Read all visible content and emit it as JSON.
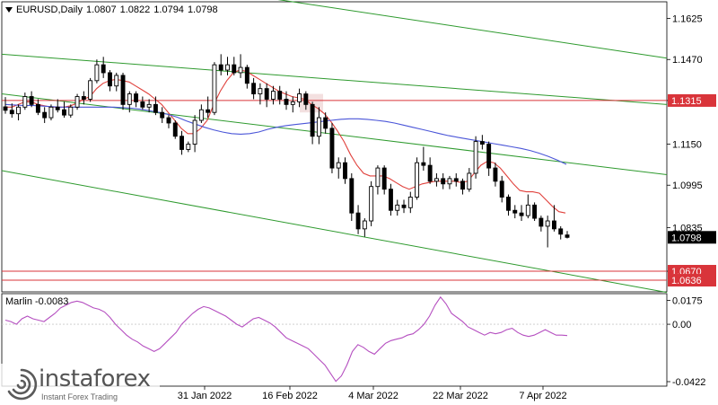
{
  "header": {
    "symbol": "EURUSD,Daily",
    "open": "1.0807",
    "high": "1.0822",
    "low": "1.0794",
    "close": "1.0798"
  },
  "indicator": {
    "name": "Marlin",
    "value": "-0.0083"
  },
  "watermark": {
    "brand": "instaforex",
    "tagline": "Instant Forex Trading"
  },
  "colors": {
    "background": "#ffffff",
    "candle": "#000000",
    "ma_fast": "#e0413c",
    "ma_slow": "#4a55d8",
    "channel": "#2e9a2e",
    "level": "#d9343a",
    "oscillator": "#b54fc0",
    "price_tag_bg": "#000000"
  },
  "chart_data": [
    {
      "type": "candlestick",
      "symbol": "EURUSD",
      "timeframe": "Daily",
      "ylim": [
        1.0592,
        1.1688
      ],
      "y_ticks": [
        "1.1625",
        "1.1470",
        "1.1315",
        "1.1150",
        "1.0995",
        "1.0835",
        "1.0670"
      ],
      "x_ticks": [
        "31 Jan 2022",
        "16 Feb 2022",
        "4 Mar 2022",
        "22 Mar 2022",
        "7 Apr 2022"
      ],
      "price_labels": {
        "current": "1.0798",
        "resistance": "1.1315",
        "support_1": "1.0670",
        "support_2": "1.0636"
      },
      "horizontal_levels": [
        1.1315,
        1.067,
        1.0636
      ],
      "candles": [
        [
          1.1291,
          1.1328,
          1.1265,
          1.1278
        ],
        [
          1.1278,
          1.1304,
          1.125,
          1.1265
        ],
        [
          1.1265,
          1.13,
          1.124,
          1.129
        ],
        [
          1.129,
          1.1345,
          1.128,
          1.133
        ],
        [
          1.133,
          1.135,
          1.129,
          1.13
        ],
        [
          1.13,
          1.132,
          1.126,
          1.127
        ],
        [
          1.127,
          1.129,
          1.123,
          1.125
        ],
        [
          1.125,
          1.13,
          1.124,
          1.129
        ],
        [
          1.129,
          1.132,
          1.127,
          1.128
        ],
        [
          1.128,
          1.131,
          1.125,
          1.126
        ],
        [
          1.126,
          1.13,
          1.125,
          1.129
        ],
        [
          1.129,
          1.134,
          1.128,
          1.133
        ],
        [
          1.133,
          1.135,
          1.13,
          1.132
        ],
        [
          1.132,
          1.14,
          1.131,
          1.139
        ],
        [
          1.139,
          1.147,
          1.138,
          1.145
        ],
        [
          1.145,
          1.148,
          1.14,
          1.142
        ],
        [
          1.142,
          1.143,
          1.135,
          1.137
        ],
        [
          1.137,
          1.142,
          1.135,
          1.141
        ],
        [
          1.141,
          1.142,
          1.128,
          1.13
        ],
        [
          1.13,
          1.135,
          1.127,
          1.134
        ],
        [
          1.134,
          1.135,
          1.129,
          1.131
        ],
        [
          1.131,
          1.133,
          1.128,
          1.129
        ],
        [
          1.129,
          1.132,
          1.127,
          1.13
        ],
        [
          1.13,
          1.133,
          1.126,
          1.127
        ],
        [
          1.127,
          1.129,
          1.123,
          1.125
        ],
        [
          1.125,
          1.126,
          1.121,
          1.123
        ],
        [
          1.123,
          1.124,
          1.117,
          1.118
        ],
        [
          1.118,
          1.12,
          1.111,
          1.113
        ],
        [
          1.113,
          1.116,
          1.112,
          1.115
        ],
        [
          1.115,
          1.126,
          1.112,
          1.124
        ],
        [
          1.124,
          1.13,
          1.123,
          1.128
        ],
        [
          1.128,
          1.133,
          1.125,
          1.127
        ],
        [
          1.127,
          1.146,
          1.126,
          1.145
        ],
        [
          1.145,
          1.149,
          1.141,
          1.143
        ],
        [
          1.143,
          1.148,
          1.141,
          1.145
        ],
        [
          1.145,
          1.148,
          1.141,
          1.142
        ],
        [
          1.142,
          1.149,
          1.14,
          1.144
        ],
        [
          1.144,
          1.145,
          1.136,
          1.138
        ],
        [
          1.138,
          1.14,
          1.132,
          1.134
        ],
        [
          1.134,
          1.138,
          1.13,
          1.136
        ],
        [
          1.136,
          1.138,
          1.129,
          1.132
        ],
        [
          1.132,
          1.137,
          1.13,
          1.135
        ],
        [
          1.135,
          1.137,
          1.13,
          1.132
        ],
        [
          1.132,
          1.135,
          1.128,
          1.13
        ],
        [
          1.13,
          1.133,
          1.127,
          1.131
        ],
        [
          1.131,
          1.136,
          1.129,
          1.134
        ],
        [
          1.134,
          1.135,
          1.128,
          1.13
        ],
        [
          1.13,
          1.131,
          1.115,
          1.118
        ],
        [
          1.118,
          1.129,
          1.115,
          1.125
        ],
        [
          1.125,
          1.127,
          1.119,
          1.121
        ],
        [
          1.121,
          1.123,
          1.104,
          1.106
        ],
        [
          1.106,
          1.11,
          1.102,
          1.108
        ],
        [
          1.108,
          1.11,
          1.1,
          1.102
        ],
        [
          1.102,
          1.104,
          1.086,
          1.089
        ],
        [
          1.089,
          1.092,
          1.081,
          1.083
        ],
        [
          1.083,
          1.087,
          1.08,
          1.086
        ],
        [
          1.086,
          1.101,
          1.084,
          1.099
        ],
        [
          1.099,
          1.107,
          1.096,
          1.106
        ],
        [
          1.106,
          1.107,
          1.096,
          1.098
        ],
        [
          1.098,
          1.1,
          1.088,
          1.09
        ],
        [
          1.09,
          1.094,
          1.088,
          1.092
        ],
        [
          1.092,
          1.094,
          1.089,
          1.091
        ],
        [
          1.091,
          1.097,
          1.089,
          1.095
        ],
        [
          1.095,
          1.11,
          1.094,
          1.108
        ],
        [
          1.108,
          1.114,
          1.105,
          1.107
        ],
        [
          1.107,
          1.11,
          1.1,
          1.101
        ],
        [
          1.101,
          1.104,
          1.099,
          1.102
        ],
        [
          1.102,
          1.104,
          1.098,
          1.1
        ],
        [
          1.1,
          1.103,
          1.098,
          1.102
        ],
        [
          1.102,
          1.104,
          1.099,
          1.101
        ],
        [
          1.101,
          1.102,
          1.096,
          1.098
        ],
        [
          1.098,
          1.106,
          1.097,
          1.104
        ],
        [
          1.104,
          1.118,
          1.102,
          1.116
        ],
        [
          1.116,
          1.1185,
          1.113,
          1.115
        ],
        [
          1.115,
          1.116,
          1.103,
          1.106
        ],
        [
          1.106,
          1.108,
          1.099,
          1.101
        ],
        [
          1.101,
          1.103,
          1.093,
          1.095
        ],
        [
          1.095,
          1.096,
          1.088,
          1.09
        ],
        [
          1.09,
          1.092,
          1.087,
          1.089
        ],
        [
          1.089,
          1.092,
          1.086,
          1.088
        ],
        [
          1.088,
          1.096,
          1.087,
          1.092
        ],
        [
          1.092,
          1.093,
          1.086,
          1.087
        ],
        [
          1.087,
          1.088,
          1.082,
          1.084
        ],
        [
          1.084,
          1.088,
          1.076,
          1.086
        ],
        [
          1.086,
          1.092,
          1.082,
          1.083
        ],
        [
          1.083,
          1.084,
          1.079,
          1.081
        ],
        [
          1.0807,
          1.0822,
          1.0794,
          1.0798
        ]
      ],
      "ma_fast": [
        1.129,
        1.129,
        1.13,
        1.131,
        1.131,
        1.13,
        1.1295,
        1.129,
        1.129,
        1.129,
        1.1295,
        1.1305,
        1.132,
        1.133,
        1.136,
        1.138,
        1.139,
        1.1395,
        1.139,
        1.1385,
        1.137,
        1.1355,
        1.134,
        1.132,
        1.13,
        1.127,
        1.124,
        1.121,
        1.119,
        1.119,
        1.121,
        1.124,
        1.13,
        1.135,
        1.139,
        1.142,
        1.143,
        1.1425,
        1.141,
        1.1395,
        1.138,
        1.1365,
        1.135,
        1.134,
        1.133,
        1.1325,
        1.132,
        1.13,
        1.1285,
        1.1265,
        1.1235,
        1.12,
        1.116,
        1.111,
        1.107,
        1.104,
        1.103,
        1.103,
        1.103,
        1.102,
        1.1005,
        1.099,
        1.098,
        1.099,
        1.1,
        1.1005,
        1.101,
        1.101,
        1.101,
        1.101,
        1.1005,
        1.101,
        1.104,
        1.107,
        1.1085,
        1.108,
        1.106,
        1.103,
        1.1,
        1.0975,
        1.097,
        1.097,
        1.0965,
        1.094,
        1.0915,
        1.0895,
        1.089
      ],
      "ma_slow": [
        1.13,
        1.1298,
        1.1296,
        1.1296,
        1.1294,
        1.1292,
        1.129,
        1.129,
        1.129,
        1.129,
        1.129,
        1.129,
        1.129,
        1.1288,
        1.1286,
        1.1282,
        1.1276,
        1.127,
        1.1262,
        1.1252,
        1.1238,
        1.1226,
        1.1214,
        1.1204,
        1.1196,
        1.119,
        1.1188,
        1.119,
        1.1196,
        1.1206,
        1.1214,
        1.122,
        1.1224,
        1.1228,
        1.1232,
        1.1236,
        1.124,
        1.1244,
        1.1246,
        1.1246,
        1.1244,
        1.124,
        1.1236,
        1.123,
        1.1222,
        1.1214,
        1.1206,
        1.1198,
        1.119,
        1.1182,
        1.1176,
        1.117,
        1.1164,
        1.1158,
        1.1152,
        1.1146,
        1.114,
        1.1134,
        1.1126,
        1.1116,
        1.1104,
        1.109,
        1.1074
      ],
      "channel_lines": "three parallel descending green trend lines",
      "oscillator": {
        "name": "Marlin",
        "value": -0.0083,
        "ylim": [
          -0.0455,
          0.0225
        ],
        "y_ticks": [
          "0.0175",
          "0.00",
          "-0.0422"
        ],
        "values": [
          0.003,
          0.002,
          0.0,
          0.004,
          0.006,
          0.004,
          0.003,
          0.002,
          0.005,
          0.008,
          0.012,
          0.014,
          0.016,
          0.017,
          0.016,
          0.014,
          0.012,
          0.011,
          0.009,
          0.005,
          0.0,
          -0.004,
          -0.008,
          -0.011,
          -0.013,
          -0.016,
          -0.018,
          -0.02,
          -0.018,
          -0.014,
          -0.01,
          -0.006,
          0.0,
          0.004,
          0.008,
          0.011,
          0.013,
          0.012,
          0.01,
          0.008,
          0.006,
          0.003,
          0.0,
          -0.002,
          0.001,
          0.004,
          0.005,
          0.003,
          0.001,
          -0.002,
          -0.006,
          -0.01,
          -0.012,
          -0.014,
          -0.016,
          -0.018,
          -0.022,
          -0.026,
          -0.03,
          -0.036,
          -0.042,
          -0.038,
          -0.03,
          -0.02,
          -0.015,
          -0.017,
          -0.02,
          -0.022,
          -0.018,
          -0.014,
          -0.012,
          -0.011,
          -0.01,
          -0.008,
          -0.007,
          -0.004,
          0.0,
          0.006,
          0.014,
          0.02,
          0.015,
          0.008,
          0.005,
          0.002,
          -0.002,
          -0.004,
          -0.006,
          -0.008,
          -0.006,
          -0.007,
          -0.006,
          -0.004,
          -0.003,
          -0.006,
          -0.008,
          -0.009,
          -0.008,
          -0.006,
          -0.004,
          -0.006,
          -0.008,
          -0.008,
          -0.0083
        ]
      }
    }
  ]
}
